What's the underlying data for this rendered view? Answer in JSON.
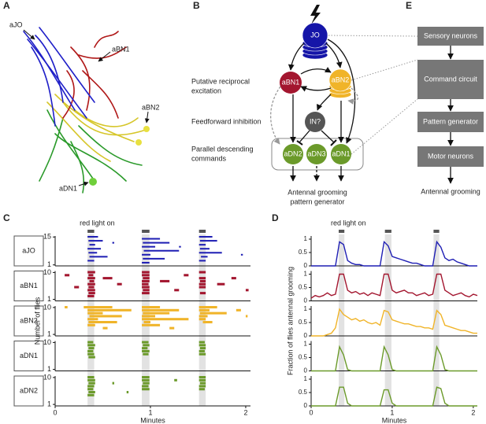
{
  "panel_labels": [
    "A",
    "B",
    "C",
    "D",
    "E"
  ],
  "panel_a": {
    "labels": [
      "aJO",
      "aBN1",
      "aBN2",
      "aDN1"
    ]
  },
  "panel_b": {
    "nodes": [
      "JO",
      "aBN1",
      "aBN2",
      "IN?",
      "aDN2",
      "aDN3",
      "aDN1"
    ],
    "side_labels": [
      [
        "Putative reciprocal",
        "excitation"
      ],
      [
        "Feedforward inhibition"
      ],
      [
        "Parallel descending",
        "commands"
      ]
    ],
    "output": [
      "Antennal grooming",
      "pattern generator"
    ]
  },
  "panel_e": {
    "boxes": [
      "Sensory neurons",
      "Command circuit",
      "Pattern generator",
      "Motor neurons"
    ],
    "output": "Antennal grooming"
  },
  "chart_data": [
    {
      "type": "raster",
      "annotation": "red light on",
      "xlabel": "Minutes",
      "ylabel": "Number of flies",
      "xlim": [
        0,
        2.05
      ],
      "xticks": [
        0,
        1,
        2
      ],
      "stimuli": [
        [
          0.34,
          0.41
        ],
        [
          0.91,
          0.99
        ],
        [
          1.51,
          1.58
        ]
      ],
      "rows": [
        {
          "name": "aJO",
          "color": "#1f1fb4",
          "ylim": [
            1,
            15
          ],
          "yticks": [
            1,
            15
          ],
          "bouts": [
            [
              15,
              0.34,
              0.45
            ],
            [
              13,
              0.35,
              0.5
            ],
            [
              11,
              0.36,
              0.42
            ],
            [
              9,
              0.34,
              0.48
            ],
            [
              7,
              0.35,
              0.44
            ],
            [
              5,
              0.36,
              0.55
            ],
            [
              3,
              0.34,
              0.41
            ],
            [
              14,
              0.91,
              1.1
            ],
            [
              12,
              0.92,
              1.2
            ],
            [
              10,
              0.91,
              1.05
            ],
            [
              8,
              0.93,
              1.3
            ],
            [
              6,
              0.91,
              1.0
            ],
            [
              4,
              0.92,
              1.15
            ],
            [
              2,
              0.91,
              0.99
            ],
            [
              15,
              1.51,
              1.65
            ],
            [
              13,
              1.52,
              1.7
            ],
            [
              11,
              1.51,
              1.58
            ],
            [
              9,
              1.52,
              1.62
            ],
            [
              7,
              1.51,
              1.75
            ],
            [
              5,
              1.53,
              1.6
            ],
            [
              3,
              1.51,
              1.58
            ],
            [
              10,
              1.3,
              1.32
            ],
            [
              6,
              1.95,
              1.97
            ],
            [
              12,
              0.6,
              0.62
            ]
          ]
        },
        {
          "name": "aBN1",
          "color": "#a3162f",
          "ylim": [
            1,
            10
          ],
          "yticks": [
            1,
            10
          ],
          "bouts": [
            [
              10,
              0.34,
              0.42
            ],
            [
              9,
              0.35,
              0.4
            ],
            [
              8,
              0.34,
              0.42
            ],
            [
              7,
              0.36,
              0.41
            ],
            [
              6,
              0.34,
              0.42
            ],
            [
              5,
              0.35,
              0.41
            ],
            [
              4,
              0.34,
              0.42
            ],
            [
              3,
              0.35,
              0.42
            ],
            [
              2,
              0.34,
              0.41
            ],
            [
              8,
              0.5,
              0.6
            ],
            [
              6,
              0.65,
              0.7
            ],
            [
              9,
              0.1,
              0.15
            ],
            [
              5,
              0.2,
              0.25
            ],
            [
              10,
              0.91,
              0.99
            ],
            [
              9,
              0.91,
              0.99
            ],
            [
              8,
              0.92,
              0.99
            ],
            [
              7,
              0.91,
              0.99
            ],
            [
              6,
              0.91,
              0.98
            ],
            [
              5,
              0.91,
              0.99
            ],
            [
              4,
              0.92,
              0.99
            ],
            [
              3,
              0.91,
              0.99
            ],
            [
              7,
              1.1,
              1.2
            ],
            [
              4,
              1.25,
              1.3
            ],
            [
              9,
              1.35,
              1.4
            ],
            [
              10,
              1.51,
              1.58
            ],
            [
              8,
              1.51,
              1.58
            ],
            [
              7,
              1.52,
              1.58
            ],
            [
              6,
              1.51,
              1.58
            ],
            [
              5,
              1.51,
              1.58
            ],
            [
              3,
              1.52,
              1.58
            ],
            [
              6,
              1.7,
              1.78
            ],
            [
              8,
              1.85,
              1.9
            ],
            [
              4,
              2.0,
              2.03
            ]
          ]
        },
        {
          "name": "aBN2",
          "color": "#f0b429",
          "ylim": [
            1,
            10
          ],
          "yticks": [
            1,
            10
          ],
          "bouts": [
            [
              10,
              0.3,
              0.6
            ],
            [
              9,
              0.34,
              0.8
            ],
            [
              8,
              0.34,
              0.5
            ],
            [
              7,
              0.36,
              0.7
            ],
            [
              6,
              0.34,
              0.45
            ],
            [
              5,
              0.35,
              0.65
            ],
            [
              4,
              0.34,
              0.42
            ],
            [
              3,
              0.5,
              0.55
            ],
            [
              10,
              0.1,
              0.13
            ],
            [
              9,
              0.91,
              1.3
            ],
            [
              10,
              0.91,
              1.1
            ],
            [
              8,
              0.92,
              1.2
            ],
            [
              7,
              0.91,
              1.05
            ],
            [
              6,
              0.91,
              1.4
            ],
            [
              5,
              0.93,
              1.0
            ],
            [
              4,
              0.91,
              1.1
            ],
            [
              3,
              1.2,
              1.25
            ],
            [
              10,
              1.51,
              1.7
            ],
            [
              9,
              1.51,
              1.62
            ],
            [
              8,
              1.52,
              1.8
            ],
            [
              7,
              1.51,
              1.6
            ],
            [
              6,
              1.51,
              1.58
            ],
            [
              5,
              1.55,
              1.65
            ],
            [
              9,
              1.9,
              1.95
            ],
            [
              7,
              2.0,
              2.02
            ]
          ]
        },
        {
          "name": "aDN1",
          "color": "#6b9a2a",
          "ylim": [
            1,
            10
          ],
          "yticks": [
            1,
            10
          ],
          "bouts": [
            [
              10,
              0.34,
              0.4
            ],
            [
              9,
              0.34,
              0.42
            ],
            [
              8,
              0.35,
              0.41
            ],
            [
              7,
              0.34,
              0.4
            ],
            [
              6,
              0.34,
              0.41
            ],
            [
              5,
              0.35,
              0.42
            ],
            [
              10,
              0.91,
              0.98
            ],
            [
              9,
              0.92,
              0.99
            ],
            [
              8,
              0.91,
              0.97
            ],
            [
              7,
              0.91,
              0.99
            ],
            [
              6,
              0.92,
              0.98
            ],
            [
              10,
              1.51,
              1.57
            ],
            [
              9,
              1.51,
              1.58
            ],
            [
              8,
              1.52,
              1.58
            ],
            [
              7,
              1.51,
              1.57
            ],
            [
              6,
              1.51,
              1.58
            ]
          ]
        },
        {
          "name": "aDN2",
          "color": "#6b9a2a",
          "ylim": [
            1,
            10
          ],
          "yticks": [
            1,
            10
          ],
          "bouts": [
            [
              10,
              0.34,
              0.41
            ],
            [
              9,
              0.34,
              0.42
            ],
            [
              8,
              0.35,
              0.42
            ],
            [
              7,
              0.34,
              0.41
            ],
            [
              6,
              0.34,
              0.4
            ],
            [
              5,
              0.35,
              0.42
            ],
            [
              4,
              0.34,
              0.41
            ],
            [
              10,
              0.91,
              0.99
            ],
            [
              9,
              0.91,
              0.99
            ],
            [
              8,
              0.92,
              0.99
            ],
            [
              7,
              0.91,
              0.98
            ],
            [
              6,
              0.91,
              0.99
            ],
            [
              10,
              1.51,
              1.58
            ],
            [
              9,
              1.51,
              1.58
            ],
            [
              8,
              1.52,
              1.58
            ],
            [
              7,
              1.51,
              1.58
            ],
            [
              6,
              1.51,
              1.57
            ],
            [
              8,
              0.6,
              0.62
            ],
            [
              5,
              0.75,
              0.77
            ],
            [
              9,
              1.25,
              1.28
            ]
          ]
        }
      ]
    },
    {
      "type": "line",
      "annotation": "red light on",
      "xlabel": "Minutes",
      "ylabel": "Fraction of flies antennal grooming",
      "xlim": [
        0,
        2.05
      ],
      "xticks": [
        0,
        1,
        2
      ],
      "ylim": [
        0,
        1
      ],
      "yticks": [
        0,
        0.5,
        1
      ],
      "x": [
        0,
        0.05,
        0.1,
        0.15,
        0.2,
        0.25,
        0.3,
        0.35,
        0.4,
        0.45,
        0.5,
        0.55,
        0.6,
        0.65,
        0.7,
        0.75,
        0.8,
        0.85,
        0.9,
        0.95,
        1,
        1.05,
        1.1,
        1.15,
        1.2,
        1.25,
        1.3,
        1.35,
        1.4,
        1.45,
        1.5,
        1.55,
        1.6,
        1.65,
        1.7,
        1.75,
        1.8,
        1.85,
        1.9,
        1.95,
        2,
        2.05
      ],
      "series": [
        {
          "name": "aJO",
          "color": "#1f1fb4",
          "values": [
            0,
            0,
            0,
            0,
            0,
            0,
            0,
            0.9,
            0.8,
            0.2,
            0.1,
            0.05,
            0.05,
            0,
            0,
            0,
            0,
            0,
            0.9,
            0.75,
            0.35,
            0.3,
            0.25,
            0.2,
            0.15,
            0.1,
            0.1,
            0.05,
            0,
            0,
            0,
            0.9,
            0.7,
            0.3,
            0.2,
            0.25,
            0.15,
            0.1,
            0.05,
            0,
            0,
            0
          ]
        },
        {
          "name": "aBN1",
          "color": "#a3162f",
          "values": [
            0.1,
            0.2,
            0.15,
            0.2,
            0.3,
            0.2,
            0.25,
            1,
            1,
            0.4,
            0.3,
            0.35,
            0.25,
            0.3,
            0.2,
            0.3,
            0.25,
            0.2,
            1,
            1,
            0.4,
            0.3,
            0.35,
            0.4,
            0.3,
            0.3,
            0.2,
            0.25,
            0.3,
            0.2,
            0.25,
            1,
            1,
            0.4,
            0.3,
            0.2,
            0.25,
            0.3,
            0.2,
            0.15,
            0.25,
            0.2
          ]
        },
        {
          "name": "aBN2",
          "color": "#f0b429",
          "values": [
            0,
            0,
            0,
            0,
            0.05,
            0.1,
            0.3,
            1,
            0.8,
            0.7,
            0.6,
            0.65,
            0.55,
            0.6,
            0.5,
            0.45,
            0.5,
            0.4,
            0.95,
            0.9,
            0.6,
            0.55,
            0.5,
            0.45,
            0.45,
            0.4,
            0.35,
            0.35,
            0.3,
            0.3,
            0.25,
            0.95,
            0.8,
            0.4,
            0.35,
            0.3,
            0.25,
            0.2,
            0.2,
            0.15,
            0.1,
            0.1
          ]
        },
        {
          "name": "aDN1",
          "color": "#6b9a2a",
          "values": [
            0,
            0,
            0,
            0,
            0,
            0,
            0,
            0.9,
            0.6,
            0.05,
            0,
            0,
            0,
            0,
            0,
            0,
            0,
            0,
            0.9,
            0.6,
            0.05,
            0,
            0,
            0,
            0,
            0,
            0,
            0,
            0,
            0,
            0,
            0.9,
            0.6,
            0.05,
            0,
            0,
            0,
            0,
            0,
            0,
            0,
            0
          ]
        },
        {
          "name": "aDN2",
          "color": "#6b9a2a",
          "values": [
            0,
            0,
            0,
            0,
            0,
            0,
            0,
            0.7,
            0.7,
            0.1,
            0,
            0,
            0,
            0,
            0,
            0,
            0,
            0,
            0.6,
            0.6,
            0.1,
            0,
            0,
            0,
            0,
            0,
            0,
            0,
            0,
            0,
            0,
            0.7,
            0.65,
            0.1,
            0,
            0,
            0,
            0,
            0,
            0,
            0,
            0
          ]
        }
      ]
    }
  ]
}
